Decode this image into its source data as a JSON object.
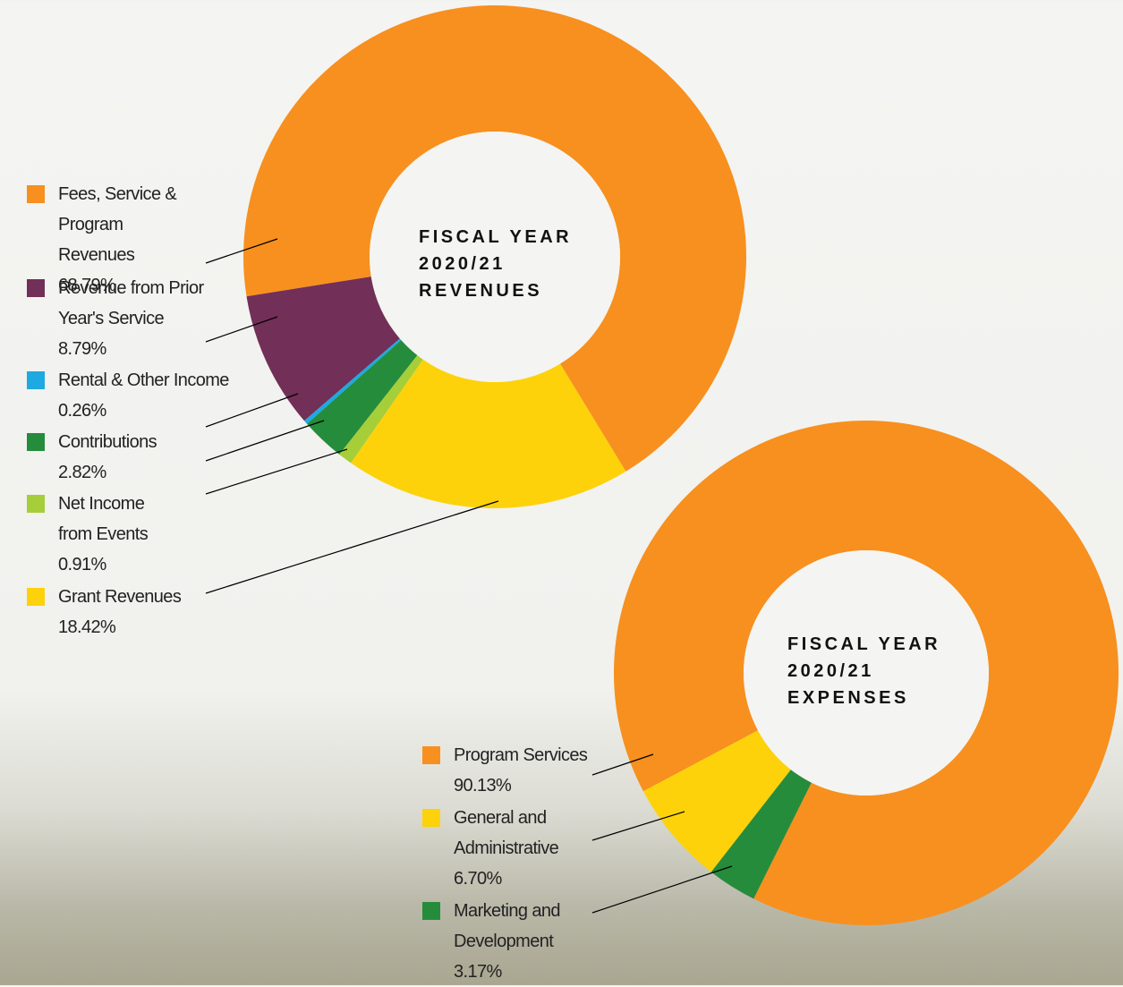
{
  "chart_data": [
    {
      "type": "pie",
      "title": "FISCAL YEAR 2020/21 REVENUES",
      "categories": [
        "Fees, Service & Program Revenues",
        "Revenue from Prior Year's Service",
        "Rental & Other Income",
        "Contributions",
        "Net Income from Events",
        "Grant Revenues"
      ],
      "values": [
        68.79,
        8.79,
        0.26,
        2.82,
        0.91,
        18.42
      ],
      "value_labels": [
        "68.79%",
        "8.79%",
        "0.26%",
        "2.82%",
        "0.91%",
        "18.42%"
      ],
      "colors": [
        "#f7901e",
        "#722f57",
        "#1ea9e1",
        "#258c3b",
        "#a6ce39",
        "#fdd20a"
      ]
    },
    {
      "type": "pie",
      "title": "FISCAL YEAR 2020/21 EXPENSES",
      "categories": [
        "Program Services",
        "General and Administrative",
        "Marketing and Development"
      ],
      "values": [
        90.13,
        6.7,
        3.17
      ],
      "value_labels": [
        "90.13%",
        "6.70%",
        "3.17%"
      ],
      "colors": [
        "#f7901e",
        "#fdd20a",
        "#258c3b"
      ]
    }
  ]
}
